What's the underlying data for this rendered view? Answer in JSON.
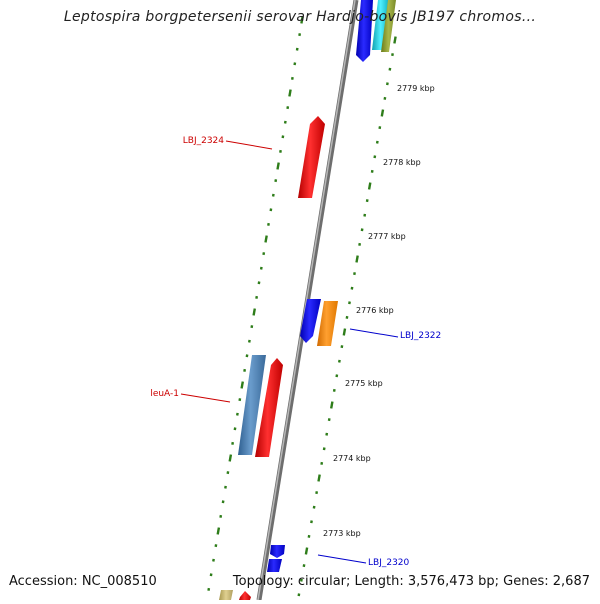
{
  "title": "Leptospira borgpetersenii serovar Hardjo-bovis JB197 chromos...",
  "footer": {
    "accession": "Accession: NC_008510",
    "topology": "Topology: circular; Length: 3,576,473 bp; Genes: 2,687"
  },
  "kbp_labels": [
    "2779 kbp",
    "2778 kbp",
    "2777 kbp",
    "2776 kbp",
    "2775 kbp",
    "2774 kbp",
    "2773 kbp"
  ],
  "gene_labels": [
    {
      "text": "LBJ_2324",
      "color": "#cc0000",
      "side": "left"
    },
    {
      "text": "leuA-1",
      "color": "#cc0000",
      "side": "left"
    },
    {
      "text": "LBJ_2322",
      "color": "#0000cc",
      "side": "right"
    },
    {
      "text": "LBJ_2320",
      "color": "#0000cc",
      "side": "right"
    }
  ],
  "colors": {
    "backbone": "#8a8a8a",
    "tick": "#2e7d1a",
    "red_gene": "#ee1111",
    "blue_gene": "#1a1aee",
    "steel_gene": "#4a7fb5",
    "orange_gene": "#ff8a00",
    "cyan_gene": "#22d0e0",
    "olive_gene": "#8a9a2a",
    "khaki_gene": "#c8b870"
  }
}
